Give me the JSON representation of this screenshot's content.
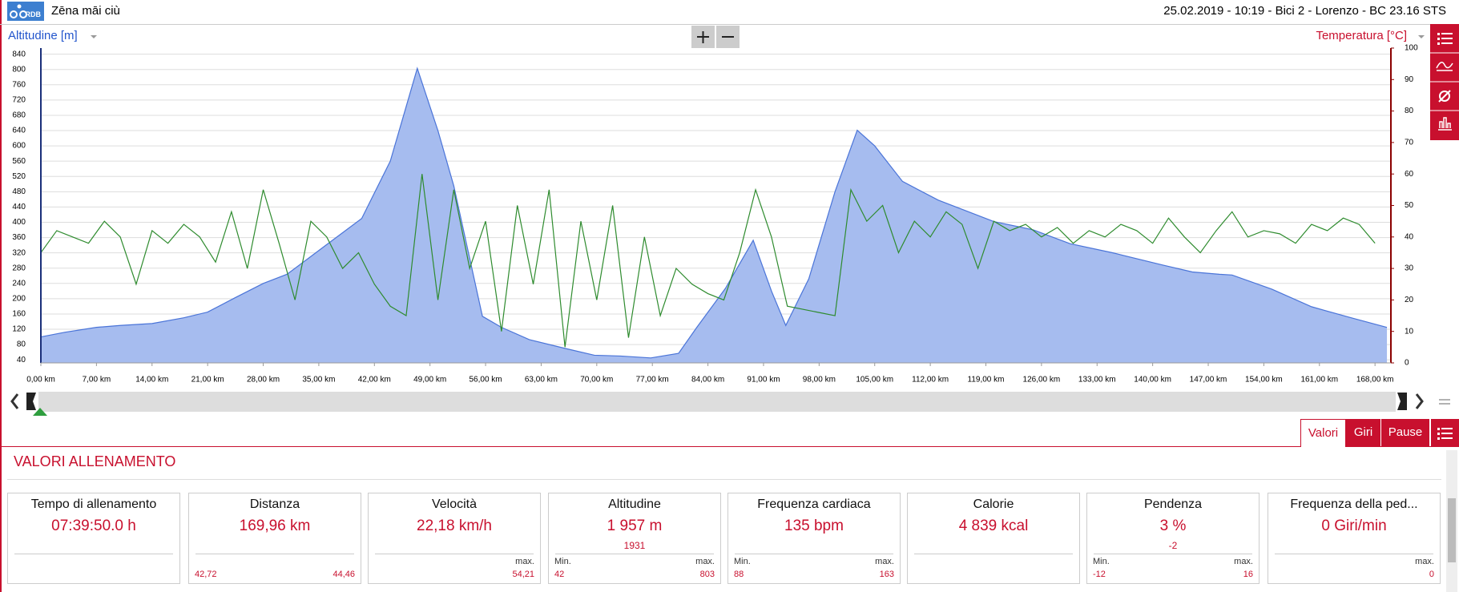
{
  "header": {
    "logo": "RDB",
    "title": "Zēna māi ciù",
    "info": "25.02.2019  -  10:19  -  Bici 2  -  Lorenzo  -  BC 23.16 STS"
  },
  "chart_data": {
    "type": "line",
    "y_label": "Altitudine [m]",
    "y2_label": "Temperatura [°C]",
    "xlim": [
      0,
      170
    ],
    "ylim": [
      32,
      856
    ],
    "y2lim": [
      0,
      100
    ],
    "grid": true,
    "xticks": [
      {
        "value": 0,
        "label": "0,00 km"
      },
      {
        "value": 7,
        "label": "7,00 km"
      },
      {
        "value": 14,
        "label": "14,00 km"
      },
      {
        "value": 21,
        "label": "21,00 km"
      },
      {
        "value": 28,
        "label": "28,00 km"
      },
      {
        "value": 35,
        "label": "35,00 km"
      },
      {
        "value": 42,
        "label": "42,00 km"
      },
      {
        "value": 49,
        "label": "49,00 km"
      },
      {
        "value": 56,
        "label": "56,00 km"
      },
      {
        "value": 63,
        "label": "63,00 km"
      },
      {
        "value": 70,
        "label": "70,00 km"
      },
      {
        "value": 77,
        "label": "77,00 km"
      },
      {
        "value": 84,
        "label": "84,00 km"
      },
      {
        "value": 91,
        "label": "91,00 km"
      },
      {
        "value": 98,
        "label": "98,00 km"
      },
      {
        "value": 105,
        "label": "105,00 km"
      },
      {
        "value": 112,
        "label": "112,00 km"
      },
      {
        "value": 119,
        "label": "119,00 km"
      },
      {
        "value": 126,
        "label": "126,00 km"
      },
      {
        "value": 133,
        "label": "133,00 km"
      },
      {
        "value": 140,
        "label": "140,00 km"
      },
      {
        "value": 147,
        "label": "147,00 km"
      },
      {
        "value": 154,
        "label": "154,00 km"
      },
      {
        "value": 161,
        "label": "161,00 km"
      },
      {
        "value": 168,
        "label": "168,00 km"
      }
    ],
    "yticks": [
      40,
      80,
      120,
      160,
      200,
      240,
      280,
      320,
      360,
      400,
      440,
      480,
      520,
      560,
      600,
      640,
      680,
      720,
      760,
      800,
      840
    ],
    "y2ticks": [
      0,
      10,
      20,
      30,
      40,
      50,
      60,
      70,
      80,
      90,
      100
    ],
    "series": [
      {
        "type": "area",
        "color": "#4a74d8",
        "fill": "#a6bcef",
        "x": [
          0,
          3,
          7,
          10,
          14,
          18,
          21,
          24.5,
          28,
          31,
          35.7,
          40.4,
          44,
          47.4,
          50,
          52,
          55.6,
          58,
          61.5,
          66,
          69.7,
          73,
          76.8,
          80.3,
          82.6,
          86.2,
          89.7,
          92,
          93.8,
          96.7,
          100,
          102.8,
          105,
          108.5,
          113,
          120,
          125,
          129.6,
          135,
          141.3,
          145,
          148.4,
          150,
          155,
          160,
          165,
          169.5
        ],
        "values": [
          100,
          112,
          125,
          130,
          135,
          150,
          165,
          203,
          240,
          264,
          337,
          410,
          560,
          803,
          640,
          495,
          154,
          125,
          93,
          70,
          52,
          50,
          45,
          57,
          125,
          227,
          353,
          220,
          130,
          252,
          480,
          641,
          600,
          507,
          458,
          402,
          380,
          344,
          320,
          288,
          270,
          264,
          262,
          225,
          179,
          150,
          125
        ]
      },
      {
        "type": "line",
        "axis": "y2",
        "color": "#2e8b2e",
        "x": [
          0,
          2,
          4,
          6,
          8,
          10,
          12,
          14,
          16,
          18,
          20,
          22,
          24,
          26,
          28,
          30,
          32,
          34,
          36,
          38,
          40,
          42,
          44,
          46,
          48,
          50,
          52,
          54,
          56,
          58,
          60,
          62,
          64,
          66,
          68,
          70,
          72,
          74,
          76,
          78,
          80,
          82,
          84,
          86,
          88,
          90,
          92,
          94,
          96,
          98,
          100,
          102,
          104,
          106,
          108,
          110,
          112,
          114,
          116,
          118,
          120,
          122,
          124,
          126,
          128,
          130,
          132,
          134,
          136,
          138,
          140,
          142,
          144,
          146,
          148,
          150,
          152,
          154,
          156,
          158,
          160,
          162,
          164,
          166,
          168
        ],
        "values": [
          35,
          42,
          40,
          38,
          45,
          40,
          25,
          42,
          38,
          44,
          40,
          32,
          48,
          30,
          55,
          38,
          20,
          45,
          40,
          30,
          35,
          25,
          18,
          15,
          60,
          20,
          55,
          30,
          45,
          10,
          50,
          25,
          55,
          5,
          45,
          20,
          50,
          8,
          40,
          15,
          30,
          25,
          22,
          20,
          35,
          55,
          40,
          18,
          17,
          16,
          15,
          55,
          45,
          50,
          35,
          45,
          40,
          48,
          44,
          30,
          45,
          42,
          44,
          40,
          43,
          38,
          42,
          40,
          44,
          42,
          38,
          46,
          40,
          35,
          42,
          48,
          40,
          42,
          41,
          38,
          44,
          42,
          46,
          44,
          38
        ]
      }
    ]
  },
  "tabs": [
    "Valori",
    "Giri",
    "Pause"
  ],
  "section_title": "VALORI ALLENAMENTO",
  "cards": [
    {
      "title": "Tempo di allenamento",
      "value": "07:39:50.0 h"
    },
    {
      "title": "Distanza",
      "value": "169,96 km",
      "bottom_left": "42,72",
      "bottom_right": "44,46"
    },
    {
      "title": "Velocità",
      "value": "22,18 km/h",
      "bottom_right_label": "max.",
      "bottom_right": "54,21"
    },
    {
      "title": "Altitudine",
      "value": "1 957 m",
      "sub": "1931",
      "bottom_left_label": "Min.",
      "bottom_left": "42",
      "bottom_right_label": "max.",
      "bottom_right": "803"
    },
    {
      "title": "Frequenza cardiaca",
      "value": "135 bpm",
      "bottom_left_label": "Min.",
      "bottom_left": "88",
      "bottom_right_label": "max.",
      "bottom_right": "163"
    },
    {
      "title": "Calorie",
      "value": "4 839 kcal"
    },
    {
      "title": "Pendenza",
      "value": "3 %",
      "sub": "-2",
      "bottom_left_label": "Min.",
      "bottom_left": "-12",
      "bottom_right_label": "max.",
      "bottom_right": "16"
    },
    {
      "title": "Frequenza della ped...",
      "value": "0 Giri/min",
      "bottom_right_label": "max.",
      "bottom_right": "0"
    }
  ]
}
